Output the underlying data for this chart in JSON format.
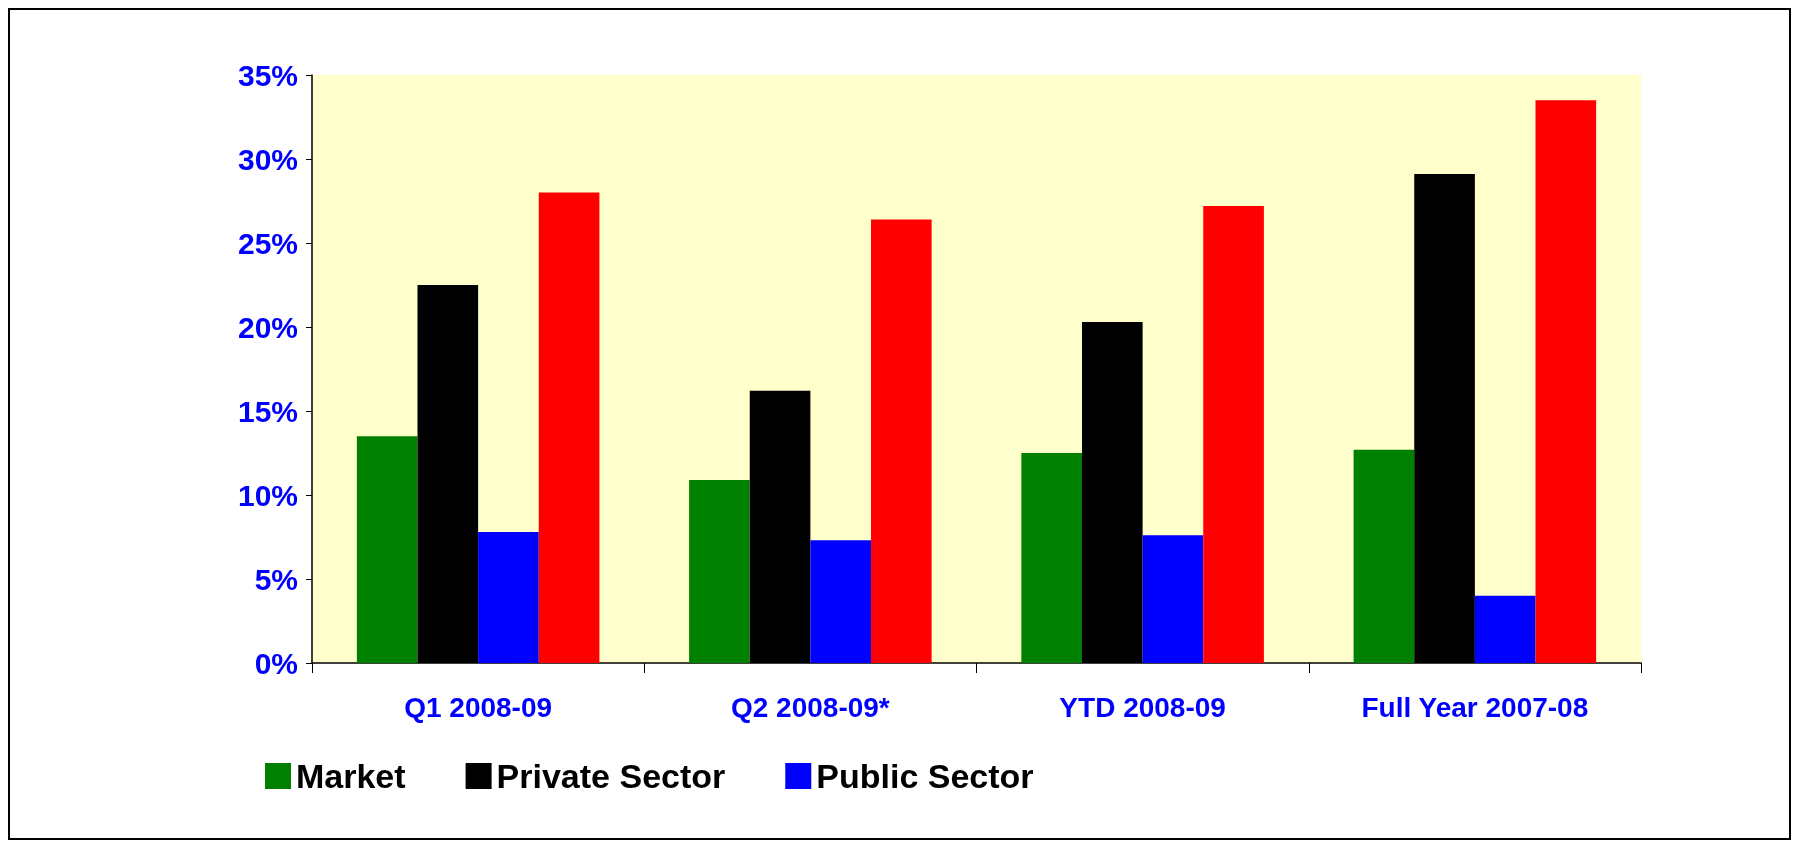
{
  "chart_data": {
    "type": "bar",
    "categories": [
      "Q1 2008-09",
      "Q2 2008-09*",
      "YTD 2008-09",
      "Full Year 2007-08"
    ],
    "series": [
      {
        "name": "Market",
        "color": "#008000",
        "values": [
          13.5,
          10.9,
          12.5,
          12.7
        ]
      },
      {
        "name": "Private Sector",
        "color": "#000000",
        "values": [
          22.5,
          16.2,
          20.3,
          29.1
        ]
      },
      {
        "name": "Public Sector",
        "color": "#0000ff",
        "values": [
          7.8,
          7.3,
          7.6,
          4.0
        ]
      },
      {
        "color": "#ff0000",
        "values": [
          28.0,
          26.4,
          27.2,
          33.5
        ]
      }
    ],
    "ylim": [
      0,
      35
    ],
    "yticks": [
      {
        "value": 0,
        "label": "0%"
      },
      {
        "value": 5,
        "label": "5%"
      },
      {
        "value": 10,
        "label": "10%"
      },
      {
        "value": 15,
        "label": "15%"
      },
      {
        "value": 20,
        "label": "20%"
      },
      {
        "value": 25,
        "label": "25%"
      },
      {
        "value": 30,
        "label": "30%"
      },
      {
        "value": 35,
        "label": "35%"
      }
    ],
    "grid": false,
    "legend": "bottom"
  }
}
